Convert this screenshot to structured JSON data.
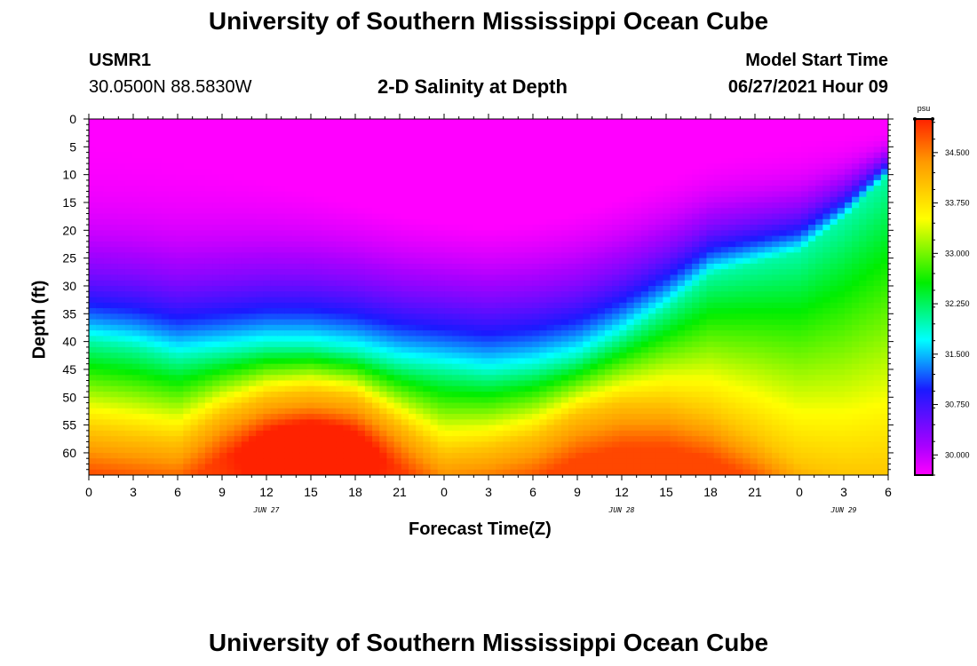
{
  "page": {
    "title_top": "University of Southern Mississippi Ocean Cube",
    "title_bottom": "University of Southern Mississippi Ocean Cube",
    "station": "USMR1",
    "location": "30.0500N  88.5830W",
    "plot_title": "2-D Salinity at Depth",
    "model_start_label": "Model Start Time",
    "model_start_value": "06/27/2021 Hour 09"
  },
  "chart_data": {
    "type": "heatmap",
    "title": "2-D Salinity at Depth",
    "xlabel": "Forecast Time(Z)",
    "ylabel": "Depth (ft)",
    "x_tick_labels": [
      "0",
      "3",
      "6",
      "9",
      "12",
      "15",
      "18",
      "21",
      "0",
      "3",
      "6",
      "9",
      "12",
      "15",
      "18",
      "21",
      "0",
      "3",
      "6"
    ],
    "date_labels": [
      {
        "label": "JUN 27",
        "tick_index": 4
      },
      {
        "label": "JUN 28",
        "tick_index": 12
      },
      {
        "label": "JUN 29",
        "tick_index": 17
      }
    ],
    "y_tick_labels": [
      "0",
      "5",
      "10",
      "15",
      "20",
      "25",
      "30",
      "35",
      "40",
      "45",
      "50",
      "55",
      "60"
    ],
    "ylim": [
      0,
      64
    ],
    "xlim_hours": [
      0,
      54
    ],
    "colorbar": {
      "unit": "psu",
      "min": 29.7,
      "max": 35.0,
      "tick_labels": [
        "30.000",
        "30.750",
        "31.500",
        "32.250",
        "33.000",
        "33.750",
        "34.500"
      ],
      "tick_values": [
        30.0,
        30.75,
        31.5,
        32.25,
        33.0,
        33.75,
        34.5
      ]
    },
    "contour_depths_ft": {
      "hours": [
        0,
        3,
        6,
        9,
        12,
        15,
        18,
        21,
        24,
        27,
        30,
        33,
        36,
        39,
        42,
        45,
        48,
        51,
        54
      ],
      "psu_32": [
        40,
        41,
        43,
        42,
        41,
        41,
        42,
        44,
        45,
        46,
        45,
        43,
        39,
        34,
        28,
        26,
        24,
        18,
        10
      ],
      "psu_34": [
        56,
        57,
        58,
        53,
        50,
        49,
        50,
        55,
        60,
        59,
        57,
        53,
        51,
        51,
        53,
        57,
        62,
        64,
        64
      ]
    }
  }
}
